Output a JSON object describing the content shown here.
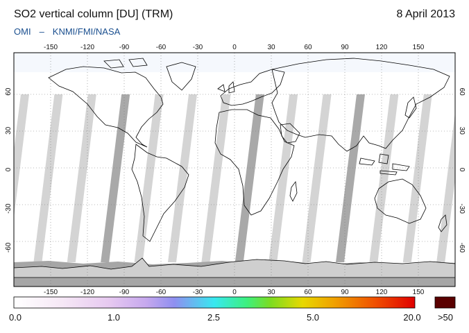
{
  "header": {
    "title": "SO2 vertical column [DU] (TRM)",
    "date": "8 April 2013",
    "credit_left": "OMI",
    "credit_sep": "–",
    "credit_right": "KNMI/FMI/NASA"
  },
  "map": {
    "lon_ticks": [
      "-150",
      "-120",
      "-90",
      "-60",
      "-30",
      "0",
      "30",
      "60",
      "90",
      "120",
      "150"
    ],
    "lat_ticks": [
      "60",
      "30",
      "0",
      "-30",
      "-60"
    ],
    "colors": {
      "ocean": "#ffffff",
      "swath_gap": "#d4d4d4",
      "swath_dark": "#a9a9a9",
      "polar_night": "#a6a6a6",
      "coast": "#000000",
      "grid": "#777777"
    }
  },
  "colorbar": {
    "labels": [
      "0.0",
      "1.0",
      "2.5",
      "5.0",
      "20.0"
    ],
    "over_label": ">50",
    "over_color": "#5a0000",
    "stops": [
      "#ffffff",
      "#f6e8f6",
      "#e6c8f0",
      "#c6a8ee",
      "#8f8ff0",
      "#38e8f0",
      "#3cf080",
      "#7cdc20",
      "#e8d800",
      "#f0a000",
      "#f05000",
      "#e00000"
    ]
  }
}
